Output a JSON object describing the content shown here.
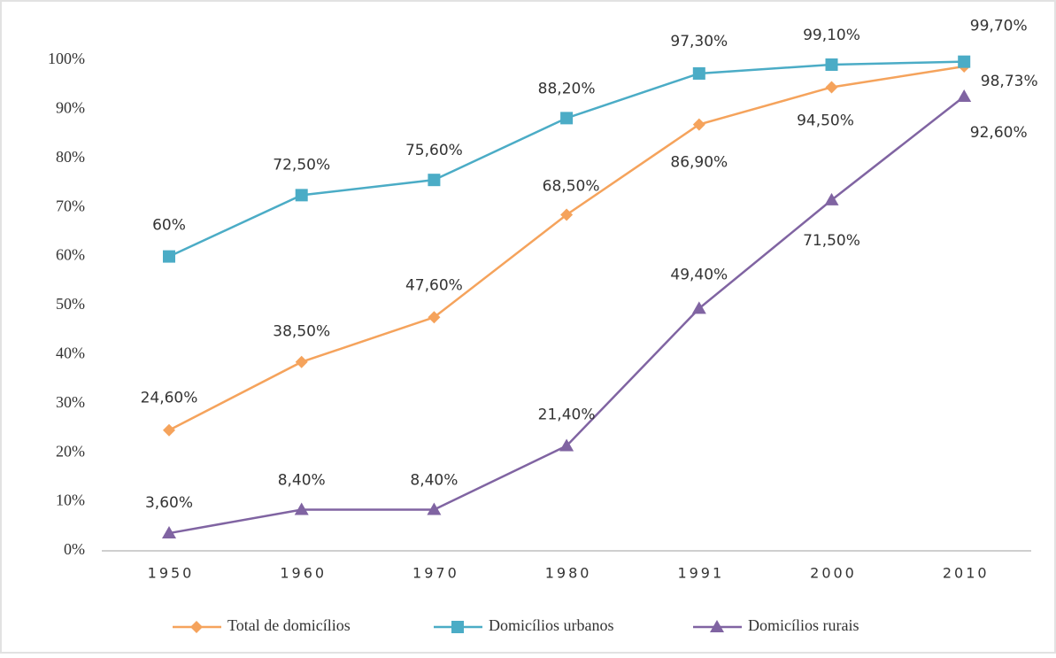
{
  "chart_data": {
    "type": "line",
    "categories": [
      "1950",
      "1960",
      "1970",
      "1980",
      "1991",
      "2000",
      "2010"
    ],
    "series": [
      {
        "name": "Total de domicílios",
        "color": "#f5a35c",
        "marker": "diamond",
        "values": [
          24.6,
          38.5,
          47.6,
          68.5,
          86.9,
          94.5,
          98.73
        ],
        "value_labels": [
          "24,60%",
          "38,50%",
          "47,60%",
          "68,50%",
          "86,90%",
          "94,50%",
          "98,73%"
        ]
      },
      {
        "name": "Domicílios urbanos",
        "color": "#4bacc6",
        "marker": "square",
        "values": [
          60,
          72.5,
          75.6,
          88.2,
          97.3,
          99.1,
          99.7
        ],
        "value_labels": [
          "60%",
          "72,50%",
          "75,60%",
          "88,20%",
          "97,30%",
          "99,10%",
          "99,70%"
        ]
      },
      {
        "name": "Domicílios rurais",
        "color": "#8064a2",
        "marker": "triangle",
        "values": [
          3.6,
          8.4,
          8.4,
          21.4,
          49.4,
          71.5,
          92.6
        ],
        "value_labels": [
          "3,60%",
          "8,40%",
          "8,40%",
          "21,40%",
          "49,40%",
          "71,50%",
          "92,60%"
        ]
      }
    ],
    "ylim": [
      0,
      100
    ],
    "yticks": [
      {
        "value": 0,
        "label": "0%"
      },
      {
        "value": 10,
        "label": "10%"
      },
      {
        "value": 20,
        "label": "20%"
      },
      {
        "value": 30,
        "label": "30%"
      },
      {
        "value": 40,
        "label": "40%"
      },
      {
        "value": 50,
        "label": "50%"
      },
      {
        "value": 60,
        "label": "60%"
      },
      {
        "value": 70,
        "label": "70%"
      },
      {
        "value": 80,
        "label": "80%"
      },
      {
        "value": 90,
        "label": "90%"
      },
      {
        "value": 100,
        "label": "100%"
      }
    ],
    "grid": false,
    "legend": "bottom"
  }
}
